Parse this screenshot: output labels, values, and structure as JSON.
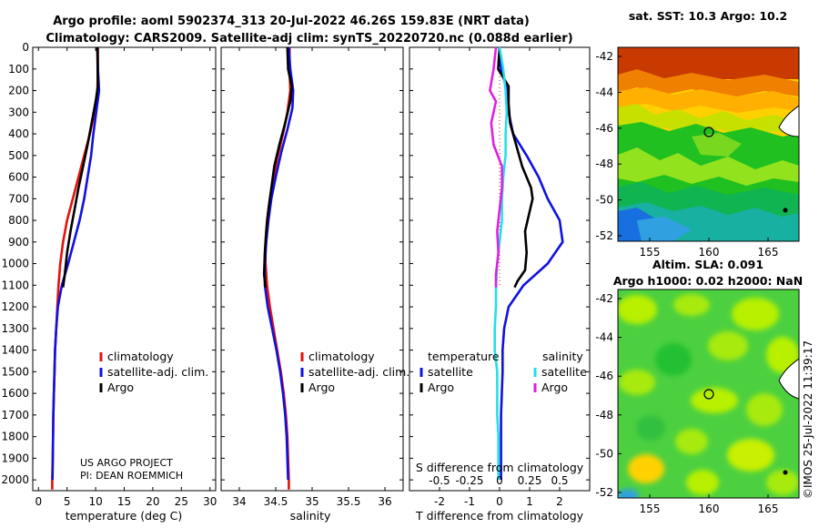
{
  "header": {
    "line1": "Argo profile: aoml 5902374_313 20-Jul-2022 46.26S 159.83E (NRT data)",
    "line2": "Climatology: CARS2009. Satellite-adj clim: synTS_20220720.nc (0.088d earlier)"
  },
  "colors": {
    "climatology": "#e3120b",
    "satellite": "#1010e0",
    "argo": "#000000",
    "sat_salinity": "#22e0e8",
    "argo_salinity": "#e020e0"
  },
  "chart_data": [
    {
      "type": "line",
      "name": "temperature",
      "xlabel": "temperature (deg C)",
      "xlim": [
        -1,
        31
      ],
      "xticks": [
        "0",
        "5",
        "10",
        "15",
        "20",
        "25",
        "30"
      ],
      "ylim": [
        2050,
        0
      ],
      "yticks": [
        "0",
        "100",
        "200",
        "300",
        "400",
        "500",
        "600",
        "700",
        "800",
        "900",
        "1000",
        "1100",
        "1200",
        "1300",
        "1400",
        "1500",
        "1600",
        "1700",
        "1800",
        "1900",
        "2000"
      ],
      "legend": [
        "climatology",
        "satellite-adj. clim.",
        "Argo"
      ],
      "credit": [
        "US ARGO PROJECT",
        "PI: DEAN ROEMMICH"
      ],
      "series": [
        {
          "name": "climatology",
          "color_key": "climatology",
          "points": [
            [
              10.4,
              0
            ],
            [
              10.4,
              100
            ],
            [
              10.3,
              200
            ],
            [
              9.8,
              300
            ],
            [
              9.0,
              400
            ],
            [
              8.0,
              500
            ],
            [
              7.0,
              600
            ],
            [
              6.0,
              700
            ],
            [
              5.0,
              800
            ],
            [
              4.3,
              900
            ],
            [
              3.8,
              1000
            ],
            [
              3.5,
              1100
            ],
            [
              3.3,
              1200
            ],
            [
              3.1,
              1300
            ],
            [
              2.9,
              1400
            ],
            [
              2.8,
              1500
            ],
            [
              2.7,
              1600
            ],
            [
              2.6,
              1700
            ],
            [
              2.55,
              1800
            ],
            [
              2.5,
              1900
            ],
            [
              2.4,
              2000
            ],
            [
              2.4,
              2045
            ]
          ]
        },
        {
          "name": "satellite-adj. clim.",
          "color_key": "satellite",
          "points": [
            [
              10.3,
              0
            ],
            [
              10.4,
              100
            ],
            [
              10.6,
              200
            ],
            [
              10.1,
              300
            ],
            [
              9.6,
              400
            ],
            [
              9.2,
              500
            ],
            [
              8.6,
              600
            ],
            [
              8.0,
              700
            ],
            [
              7.2,
              800
            ],
            [
              6.2,
              900
            ],
            [
              5.2,
              1000
            ],
            [
              4.1,
              1100
            ],
            [
              3.4,
              1200
            ],
            [
              3.1,
              1300
            ],
            [
              2.9,
              1400
            ],
            [
              2.8,
              1500
            ],
            [
              2.7,
              1600
            ],
            [
              2.6,
              1700
            ],
            [
              2.55,
              1800
            ],
            [
              2.5,
              1900
            ],
            [
              2.45,
              2000
            ]
          ]
        },
        {
          "name": "Argo",
          "color_key": "argo",
          "points": [
            [
              10.3,
              0
            ],
            [
              10.35,
              100
            ],
            [
              10.4,
              180
            ],
            [
              10.0,
              250
            ],
            [
              9.3,
              350
            ],
            [
              8.6,
              450
            ],
            [
              7.8,
              550
            ],
            [
              7.0,
              650
            ],
            [
              6.3,
              750
            ],
            [
              5.6,
              850
            ],
            [
              5.0,
              950
            ],
            [
              4.6,
              1050
            ],
            [
              4.3,
              1110
            ]
          ]
        }
      ]
    },
    {
      "type": "line",
      "name": "salinity",
      "xlabel": "salinity",
      "xlim": [
        33.75,
        36.25
      ],
      "xticks": [
        "34",
        "34.5",
        "35",
        "35.5",
        "36"
      ],
      "ylim": [
        2050,
        0
      ],
      "legend": [
        "climatology",
        "satellite-adj. clim.",
        "Argo"
      ],
      "series": [
        {
          "name": "climatology",
          "color_key": "climatology",
          "points": [
            [
              34.69,
              0
            ],
            [
              34.69,
              100
            ],
            [
              34.7,
              200
            ],
            [
              34.66,
              300
            ],
            [
              34.6,
              400
            ],
            [
              34.53,
              500
            ],
            [
              34.47,
              600
            ],
            [
              34.42,
              700
            ],
            [
              34.38,
              800
            ],
            [
              34.36,
              900
            ],
            [
              34.36,
              1000
            ],
            [
              34.38,
              1100
            ],
            [
              34.42,
              1200
            ],
            [
              34.47,
              1300
            ],
            [
              34.52,
              1400
            ],
            [
              34.57,
              1500
            ],
            [
              34.61,
              1600
            ],
            [
              34.64,
              1700
            ],
            [
              34.66,
              1800
            ],
            [
              34.67,
              1900
            ],
            [
              34.68,
              2000
            ],
            [
              34.68,
              2045
            ]
          ]
        },
        {
          "name": "satellite-adj. clim.",
          "color_key": "satellite",
          "points": [
            [
              34.68,
              0
            ],
            [
              34.7,
              100
            ],
            [
              34.74,
              200
            ],
            [
              34.73,
              280
            ],
            [
              34.66,
              380
            ],
            [
              34.58,
              480
            ],
            [
              34.5,
              600
            ],
            [
              34.44,
              700
            ],
            [
              34.4,
              800
            ],
            [
              34.37,
              900
            ],
            [
              34.35,
              1000
            ],
            [
              34.35,
              1100
            ],
            [
              34.39,
              1200
            ],
            [
              34.45,
              1300
            ],
            [
              34.51,
              1400
            ],
            [
              34.56,
              1500
            ],
            [
              34.6,
              1600
            ],
            [
              34.63,
              1700
            ],
            [
              34.65,
              1800
            ],
            [
              34.66,
              1900
            ],
            [
              34.67,
              2000
            ]
          ]
        },
        {
          "name": "Argo",
          "color_key": "argo",
          "points": [
            [
              34.66,
              0
            ],
            [
              34.67,
              100
            ],
            [
              34.72,
              180
            ],
            [
              34.7,
              250
            ],
            [
              34.63,
              350
            ],
            [
              34.55,
              450
            ],
            [
              34.48,
              550
            ],
            [
              34.44,
              650
            ],
            [
              34.4,
              750
            ],
            [
              34.37,
              850
            ],
            [
              34.35,
              950
            ],
            [
              34.34,
              1050
            ],
            [
              34.36,
              1110
            ]
          ]
        }
      ]
    },
    {
      "type": "line",
      "name": "difference",
      "xlabel": "T difference from climatology",
      "xlabel_top": "S difference from climatology",
      "xlim": [
        -3,
        3
      ],
      "xticks": [
        "-2",
        "-1",
        "0",
        "1",
        "2"
      ],
      "xticks_top": [
        "-0.5",
        "-0.25",
        "0",
        "0.25",
        "0.5"
      ],
      "ylim": [
        2050,
        0
      ],
      "legend_title_left": "temperature",
      "legend_title_right": "salinity",
      "legend_left": [
        "satellite",
        "Argo"
      ],
      "legend_right": [
        "satellite",
        "Argo"
      ],
      "series": [
        {
          "name": "T satellite",
          "color_key": "satellite",
          "points": [
            [
              0,
              0
            ],
            [
              0.05,
              100
            ],
            [
              0.25,
              200
            ],
            [
              0.3,
              300
            ],
            [
              0.45,
              400
            ],
            [
              0.9,
              500
            ],
            [
              1.3,
              600
            ],
            [
              1.6,
              700
            ],
            [
              2.0,
              800
            ],
            [
              2.1,
              900
            ],
            [
              1.6,
              1000
            ],
            [
              0.8,
              1100
            ],
            [
              0.3,
              1200
            ],
            [
              0.15,
              1300
            ],
            [
              0.1,
              1400
            ],
            [
              0.1,
              1500
            ],
            [
              0.05,
              1700
            ],
            [
              0.05,
              2000
            ]
          ]
        },
        {
          "name": "T Argo",
          "color_key": "argo",
          "points": [
            [
              0,
              0
            ],
            [
              -0.05,
              100
            ],
            [
              0.3,
              180
            ],
            [
              0.3,
              260
            ],
            [
              0.35,
              350
            ],
            [
              0.55,
              450
            ],
            [
              0.75,
              550
            ],
            [
              1.05,
              650
            ],
            [
              1.1,
              700
            ],
            [
              1.0,
              760
            ],
            [
              0.85,
              850
            ],
            [
              0.9,
              950
            ],
            [
              0.85,
              1030
            ],
            [
              0.6,
              1080
            ],
            [
              0.5,
              1110
            ]
          ]
        },
        {
          "name": "S satellite",
          "color_key": "sat_salinity",
          "points": [
            [
              0.0,
              0
            ],
            [
              0.03,
              100
            ],
            [
              0.05,
              200
            ],
            [
              0.06,
              300
            ],
            [
              0.05,
              400
            ],
            [
              0.05,
              500
            ],
            [
              0.03,
              600
            ],
            [
              0.02,
              700
            ],
            [
              0.02,
              800
            ],
            [
              0.0,
              900
            ],
            [
              -0.02,
              1000
            ],
            [
              -0.03,
              1100
            ],
            [
              -0.03,
              1200
            ],
            [
              -0.04,
              1300
            ],
            [
              -0.04,
              1400
            ],
            [
              -0.02,
              1500
            ],
            [
              -0.02,
              1600
            ],
            [
              -0.02,
              1700
            ],
            [
              -0.01,
              1800
            ],
            [
              -0.01,
              2000
            ]
          ]
        },
        {
          "name": "S Argo",
          "color_key": "argo_salinity",
          "points": [
            [
              -0.03,
              0
            ],
            [
              -0.05,
              100
            ],
            [
              -0.08,
              200
            ],
            [
              -0.03,
              250
            ],
            [
              -0.07,
              350
            ],
            [
              -0.05,
              450
            ],
            [
              0.02,
              550
            ],
            [
              0.02,
              650
            ],
            [
              0.0,
              750
            ],
            [
              -0.02,
              850
            ],
            [
              -0.01,
              950
            ],
            [
              -0.03,
              1050
            ],
            [
              -0.03,
              1110
            ]
          ]
        }
      ]
    }
  ],
  "maps": {
    "sst": {
      "title": "sat. SST: 10.3 Argo: 10.2",
      "yticks": [
        "-42",
        "-44",
        "-46",
        "-48",
        "-50",
        "-52"
      ],
      "xticks": [
        "155",
        "160",
        "165"
      ]
    },
    "sla": {
      "title_line1": "Altim. SLA: 0.091",
      "title_line2": "Argo h1000: 0.02 h2000: NaN",
      "yticks": [
        "-42",
        "-44",
        "-46",
        "-48",
        "-50",
        "-52"
      ],
      "xticks": [
        "155",
        "160",
        "165"
      ]
    }
  },
  "credit_vertical": "©IMOS 25-Jul-2022 11:39:17"
}
